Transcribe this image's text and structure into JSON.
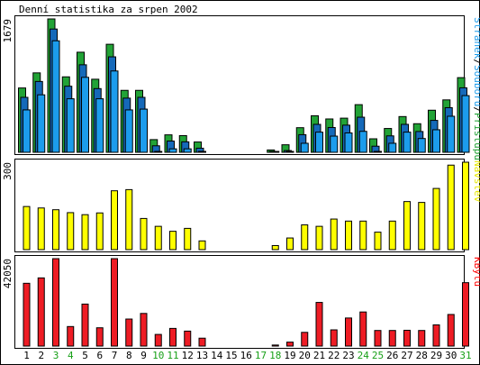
{
  "chart_data": {
    "type": "bar",
    "title": "Denní statistika za srpen 2002",
    "categories": [
      "1",
      "2",
      "3",
      "4",
      "5",
      "6",
      "7",
      "8",
      "9",
      "10",
      "11",
      "12",
      "13",
      "14",
      "15",
      "16",
      "17",
      "18",
      "19",
      "20",
      "21",
      "22",
      "23",
      "24",
      "25",
      "26",
      "27",
      "28",
      "29",
      "30",
      "31"
    ],
    "weekend_days": [
      3,
      4,
      10,
      11,
      17,
      18,
      24,
      25,
      31
    ],
    "panels": [
      {
        "id": "hits",
        "ymax_label": "1679",
        "ymax": 1679,
        "side_label_parts": [
          {
            "text": "Stránek",
            "color": "#1c9cec"
          },
          {
            "text": "/",
            "color": "#000000"
          },
          {
            "text": "Souborů",
            "color": "#1c9cec"
          },
          {
            "text": "/",
            "color": "#000000"
          },
          {
            "text": "Přístupů",
            "color": "#22a336"
          }
        ],
        "series": [
          {
            "name": "Přístupů",
            "color": "#22a336",
            "values": [
              810,
              1000,
              1679,
              950,
              1260,
              920,
              1360,
              780,
              780,
              160,
              220,
              210,
              130,
              0,
              0,
              0,
              0,
              30,
              95,
              310,
              460,
              420,
              430,
              600,
              170,
              300,
              450,
              360,
              530,
              660,
              940
            ]
          },
          {
            "name": "Souborů",
            "color": "#1569b9",
            "values": [
              760,
              960,
              1620,
              900,
              1170,
              870,
              1270,
              750,
              760,
              150,
              210,
              200,
              120,
              0,
              0,
              0,
              0,
              25,
              90,
              290,
              420,
              380,
              410,
              510,
              145,
              275,
              420,
              330,
              470,
              630,
              880
            ]
          },
          {
            "name": "Stránek",
            "color": "#1c9cec",
            "values": [
              670,
              860,
              1540,
              810,
              1080,
              810,
              1160,
              670,
              680,
              130,
              180,
              180,
              110,
              0,
              0,
              0,
              0,
              20,
              80,
              250,
              390,
              340,
              380,
              400,
              120,
              250,
              390,
              310,
              420,
              590,
              850
            ]
          }
        ]
      },
      {
        "id": "visits",
        "ymax_label": "300",
        "ymax": 300,
        "side_label_parts": [
          {
            "text": "Návštěv",
            "color": "#e8e800"
          }
        ],
        "series": [
          {
            "name": "Návštěv",
            "color": "#ffff00",
            "values": [
              148,
              143,
              137,
              127,
              120,
              126,
              202,
              206,
              107,
              80,
              63,
              73,
              30,
              0,
              0,
              0,
              0,
              14,
              40,
              85,
              80,
              105,
              98,
              98,
              60,
              98,
              165,
              162,
              210,
              290,
              300
            ]
          }
        ]
      },
      {
        "id": "kbytes",
        "ymax_label": "42050",
        "ymax": 42050,
        "side_label_parts": [
          {
            "text": "KBytů",
            "color": "#ff0000"
          }
        ],
        "series": [
          {
            "name": "KBytů",
            "color": "#ee1c24",
            "values": [
              30200,
              32800,
              42050,
              9400,
              20200,
              8800,
              42050,
              13000,
              15700,
              5600,
              8500,
              7200,
              3800,
              0,
              0,
              0,
              0,
              500,
              1900,
              6600,
              21000,
              7800,
              13500,
              16400,
              7500,
              7500,
              7600,
              7500,
              10200,
              15200,
              30500
            ]
          }
        ]
      }
    ]
  }
}
